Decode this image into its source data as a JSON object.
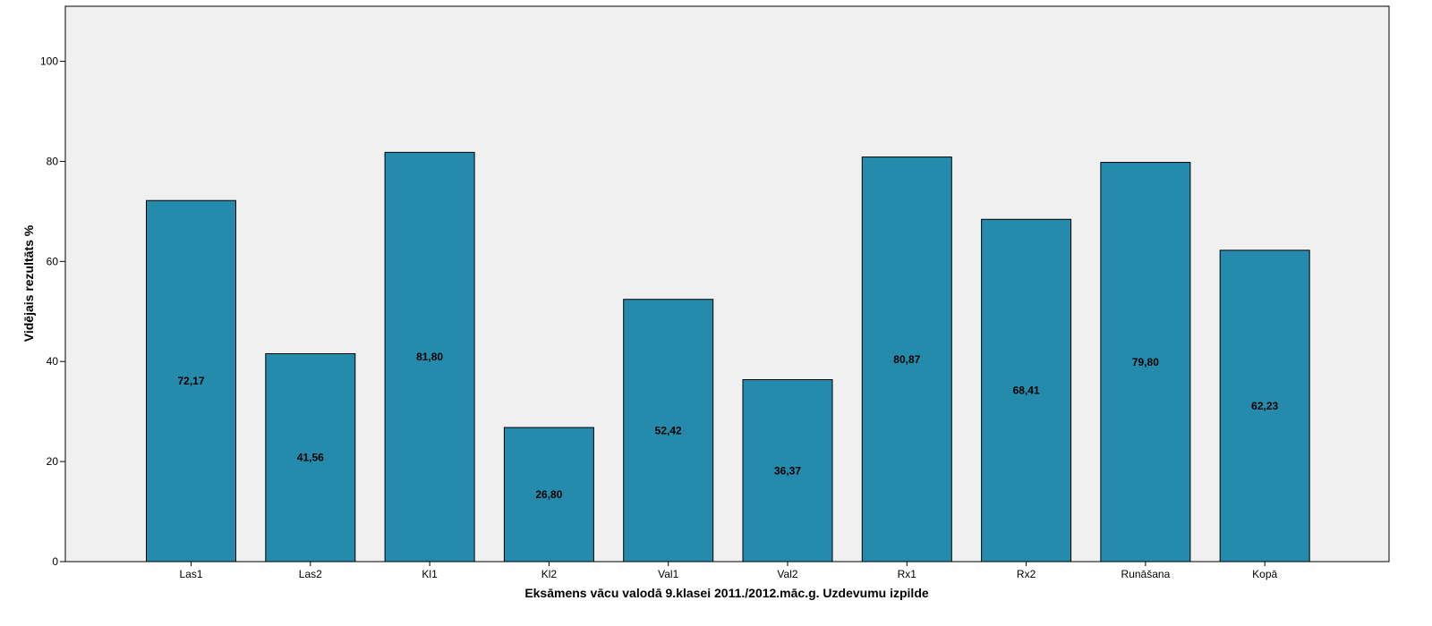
{
  "chart_data": {
    "type": "bar",
    "title": "",
    "xlabel": "Eksāmens vācu valodā 9.klasei 2011./2012.māc.g. Uzdevumu izpilde",
    "ylabel": "Vidējais rezultāts %",
    "categories": [
      "Las1",
      "Las2",
      "Kl1",
      "Kl2",
      "Val1",
      "Val2",
      "Rx1",
      "Rx2",
      "Runāšana",
      "Kopā"
    ],
    "values": [
      72.17,
      41.56,
      81.8,
      26.8,
      52.42,
      36.37,
      80.87,
      68.41,
      79.8,
      62.23
    ],
    "value_labels": [
      "72,17",
      "41,56",
      "81,80",
      "26,80",
      "52,42",
      "36,37",
      "80,87",
      "68,41",
      "79,80",
      "62,23"
    ],
    "yticks": [
      0,
      20,
      40,
      60,
      80,
      100
    ],
    "ytick_labels": [
      "0",
      "20",
      "40",
      "60",
      "80",
      "100"
    ],
    "ylim": [
      0,
      111
    ],
    "grid": false,
    "legend": "none",
    "colors": {
      "bar": "#248BAC",
      "bar_stroke": "#000000",
      "plot_background": "#F0F0F0",
      "axis": "#000000"
    }
  }
}
